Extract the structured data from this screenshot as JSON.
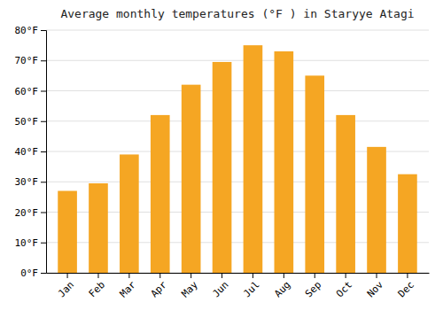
{
  "chart_data": {
    "type": "bar",
    "title": "Average monthly temperatures (°F ) in Staryye Atagi",
    "categories": [
      "Jan",
      "Feb",
      "Mar",
      "Apr",
      "May",
      "Jun",
      "Jul",
      "Aug",
      "Sep",
      "Oct",
      "Nov",
      "Dec"
    ],
    "values": [
      27,
      29.5,
      39,
      52,
      62,
      69.5,
      75,
      73,
      65,
      52,
      41.5,
      32.5
    ],
    "color": "#F5A623",
    "ylim": [
      0,
      80
    ],
    "yticks": [
      {
        "value": 0,
        "label": "0°F"
      },
      {
        "value": 10,
        "label": "10°F"
      },
      {
        "value": 20,
        "label": "20°F"
      },
      {
        "value": 30,
        "label": "30°F"
      },
      {
        "value": 40,
        "label": "40°F"
      },
      {
        "value": 50,
        "label": "50°F"
      },
      {
        "value": 60,
        "label": "60°F"
      },
      {
        "value": 70,
        "label": "70°F"
      },
      {
        "value": 80,
        "label": "80°F"
      }
    ],
    "grid": true
  }
}
